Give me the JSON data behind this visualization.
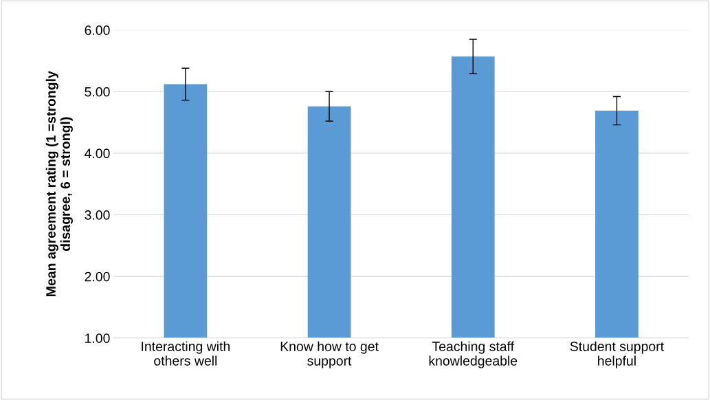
{
  "chart_data": {
    "type": "bar",
    "categories": [
      "Interacting with\nothers well",
      "Know how to get\nsupport",
      "Teaching staff\nknowledgeable",
      "Student support\nhelpful"
    ],
    "values": [
      5.12,
      4.76,
      5.57,
      4.69
    ],
    "errors": [
      0.26,
      0.24,
      0.28,
      0.23
    ],
    "color": "#5b9bd5",
    "ylabel": "Mean agreement rating (1 =strongly\ndisagree, 6 = strongl)",
    "ylim": [
      1,
      6
    ],
    "yticks": [
      {
        "value": 1,
        "label": "1.00"
      },
      {
        "value": 2,
        "label": "2.00"
      },
      {
        "value": 3,
        "label": "3.00"
      },
      {
        "value": 4,
        "label": "4.00"
      },
      {
        "value": 5,
        "label": "5.00"
      },
      {
        "value": 6,
        "label": "6.00"
      }
    ],
    "grid": "y"
  }
}
